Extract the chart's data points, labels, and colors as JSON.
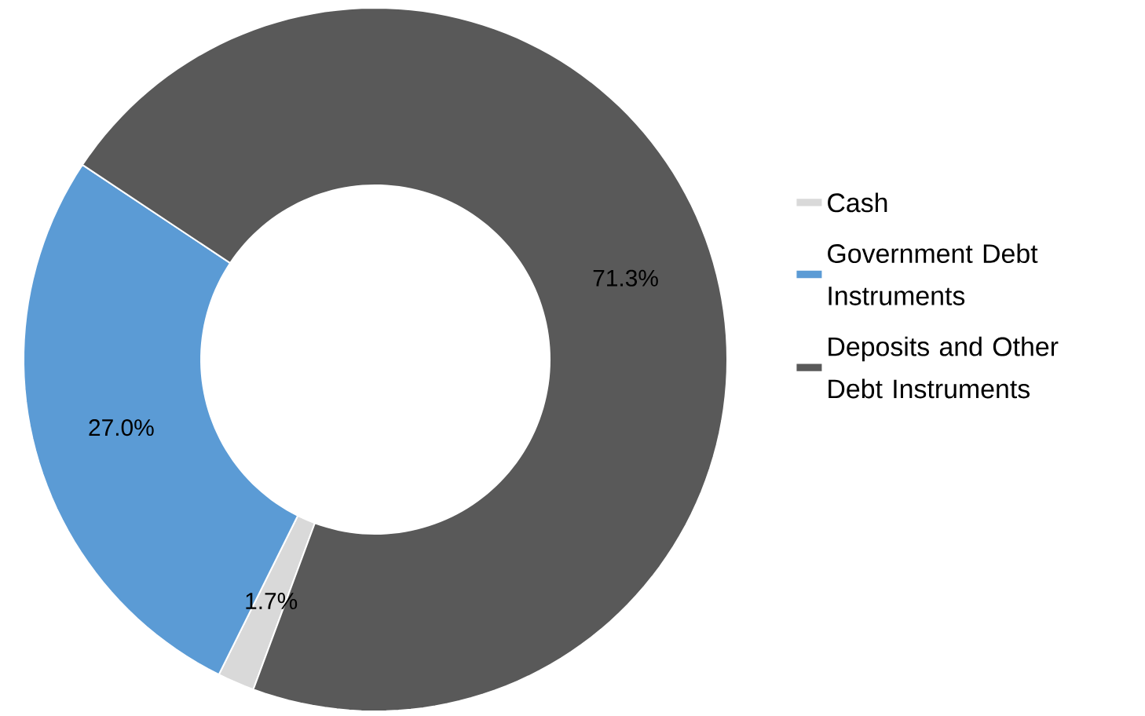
{
  "chart_data": {
    "type": "donut",
    "categories": [
      "Cash",
      "Government Debt Instruments",
      "Deposits and Other Debt Instruments"
    ],
    "values": [
      1.7,
      27.0,
      71.3
    ],
    "value_labels": [
      "1.7%",
      "27.0%",
      "71.3%"
    ],
    "colors": [
      "#d9d9d9",
      "#5b9bd5",
      "#595959"
    ],
    "legend": "right"
  }
}
